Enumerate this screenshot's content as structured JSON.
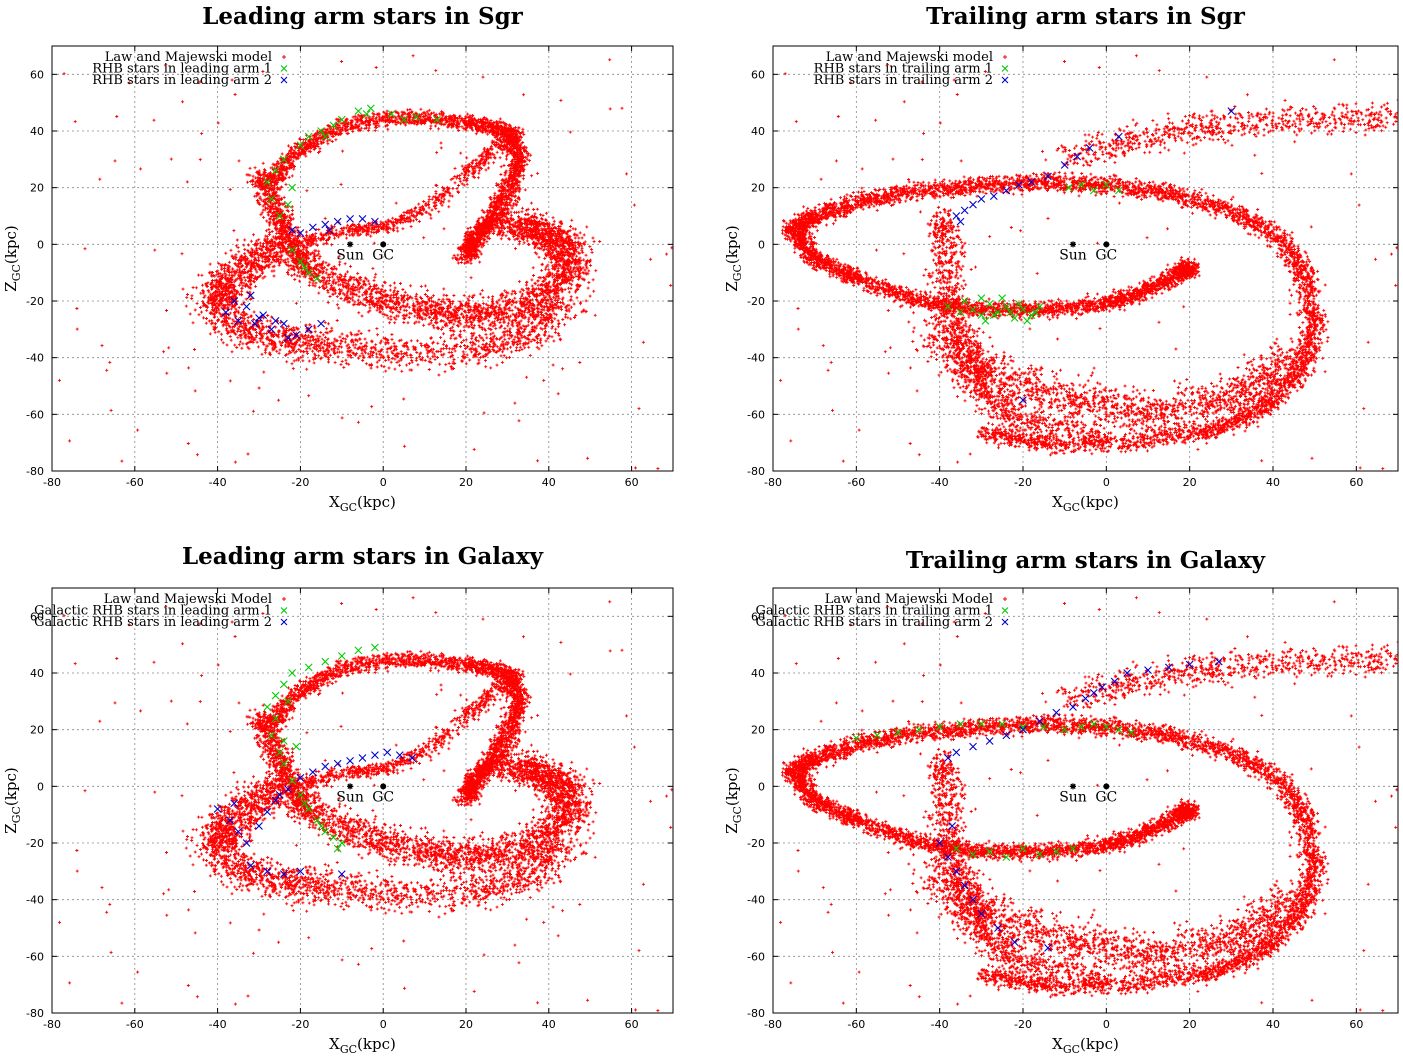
{
  "chart_data": [
    {
      "type": "scatter",
      "title": "Leading arm stars in Sgr",
      "xlabel": "X",
      "xlabel_sub": "GC",
      "xlabel_unit": "(kpc)",
      "ylabel": "Z",
      "ylabel_sub": "GC",
      "ylabel_unit": "(kpc)",
      "xlim": [
        -80,
        70
      ],
      "ylim": [
        -80,
        70
      ],
      "xticks": [
        -80,
        -60,
        -40,
        -20,
        0,
        20,
        40,
        60
      ],
      "yticks": [
        -80,
        -60,
        -40,
        -20,
        0,
        20,
        40,
        60
      ],
      "grid": true,
      "legend_position": "top-left",
      "model": "leading",
      "series": [
        {
          "name": "Law and Majewski model",
          "marker": "+",
          "color": "#ff0000"
        },
        {
          "name": "RHB stars in leading arm 1",
          "marker": "x",
          "color": "#00cc00",
          "points": [
            [
              -28,
              22
            ],
            [
              -24,
              30
            ],
            [
              -20,
              35
            ],
            [
              -15,
              40
            ],
            [
              -10,
              44
            ],
            [
              -6,
              47
            ],
            [
              -3,
              48
            ],
            [
              2,
              46
            ],
            [
              8,
              45
            ],
            [
              13,
              44
            ],
            [
              -27,
              16
            ],
            [
              -25,
              10
            ],
            [
              -22,
              20
            ],
            [
              -18,
              38
            ],
            [
              -12,
              42
            ],
            [
              -22,
              -2
            ],
            [
              -20,
              -6
            ],
            [
              -18,
              -10
            ],
            [
              -16,
              -12
            ],
            [
              -19,
              -8
            ],
            [
              -26,
              26
            ],
            [
              -14,
              38
            ],
            [
              -4,
              46
            ],
            [
              5,
              44
            ],
            [
              -23,
              14
            ]
          ]
        },
        {
          "name": "RHB stars in leading arm 2",
          "marker": "x",
          "color": "#0000cc",
          "points": [
            [
              -38,
              -24
            ],
            [
              -35,
              -27
            ],
            [
              -33,
              -22
            ],
            [
              -31,
              -28
            ],
            [
              -29,
              -25
            ],
            [
              -27,
              -30
            ],
            [
              -24,
              -28
            ],
            [
              -21,
              -32
            ],
            [
              -18,
              -30
            ],
            [
              -15,
              -28
            ],
            [
              -36,
              -20
            ],
            [
              -32,
              -18
            ],
            [
              -30,
              -26
            ],
            [
              -26,
              -27
            ],
            [
              -23,
              -33
            ],
            [
              -20,
              4
            ],
            [
              -17,
              6
            ],
            [
              -14,
              7
            ],
            [
              -11,
              8
            ],
            [
              -8,
              9
            ],
            [
              -5,
              9
            ],
            [
              -2,
              8
            ],
            [
              -22,
              5
            ],
            [
              -13,
              5
            ]
          ]
        }
      ],
      "annotations": [
        {
          "label": "Sun",
          "marker": "*",
          "x": -8,
          "y": 0
        },
        {
          "label": "GC",
          "marker": "dot",
          "x": 0,
          "y": 0
        }
      ]
    },
    {
      "type": "scatter",
      "title": "Trailing arm stars in Sgr",
      "xlabel": "X",
      "xlabel_sub": "GC",
      "xlabel_unit": "(kpc)",
      "ylabel": "Z",
      "ylabel_sub": "GC",
      "ylabel_unit": "(kpc)",
      "xlim": [
        -80,
        70
      ],
      "ylim": [
        -80,
        70
      ],
      "xticks": [
        -80,
        -60,
        -40,
        -20,
        0,
        20,
        40,
        60
      ],
      "yticks": [
        -80,
        -60,
        -40,
        -20,
        0,
        20,
        40,
        60
      ],
      "grid": true,
      "legend_position": "top-left",
      "model": "trailing",
      "series": [
        {
          "name": "Law and Majewski model",
          "marker": "+",
          "color": "#ff0000"
        },
        {
          "name": "RHB stars in trailing arm 1",
          "marker": "x",
          "color": "#00cc00",
          "points": [
            [
              -38,
              -22
            ],
            [
              -35,
              -24
            ],
            [
              -32,
              -23
            ],
            [
              -30,
              -25
            ],
            [
              -28,
              -21
            ],
            [
              -26,
              -24
            ],
            [
              -24,
              -22
            ],
            [
              -22,
              -26
            ],
            [
              -20,
              -23
            ],
            [
              -18,
              -25
            ],
            [
              -16,
              -22
            ],
            [
              -34,
              -20
            ],
            [
              -29,
              -27
            ],
            [
              -25,
              -19
            ],
            [
              -21,
              -21
            ],
            [
              -17,
              -24
            ],
            [
              -27,
              -25
            ],
            [
              -23,
              -24
            ],
            [
              -30,
              -19
            ],
            [
              -6,
              21
            ],
            [
              -3,
              19
            ],
            [
              0,
              21
            ],
            [
              -9,
              20
            ],
            [
              3,
              19
            ],
            [
              -19,
              -27
            ]
          ]
        },
        {
          "name": "RHB stars in trailing arm 2",
          "marker": "x",
          "color": "#0000cc",
          "points": [
            [
              -36,
              10
            ],
            [
              -34,
              12
            ],
            [
              -32,
              14
            ],
            [
              -30,
              16
            ],
            [
              -27,
              17
            ],
            [
              -24,
              19
            ],
            [
              -21,
              21
            ],
            [
              -18,
              22
            ],
            [
              -14,
              24
            ],
            [
              -10,
              28
            ],
            [
              -7,
              31
            ],
            [
              -4,
              34
            ],
            [
              3,
              38
            ],
            [
              30,
              47
            ],
            [
              -35,
              8
            ],
            [
              -20,
              -55
            ]
          ]
        }
      ],
      "annotations": [
        {
          "label": "Sun",
          "marker": "*",
          "x": -8,
          "y": 0
        },
        {
          "label": "GC",
          "marker": "dot",
          "x": 0,
          "y": 0
        }
      ]
    },
    {
      "type": "scatter",
      "title": "Leading arm stars in Galaxy",
      "xlabel": "X",
      "xlabel_sub": "GC",
      "xlabel_unit": "(kpc)",
      "ylabel": "Z",
      "ylabel_sub": "GC",
      "ylabel_unit": "(kpc)",
      "xlim": [
        -80,
        70
      ],
      "ylim": [
        -80,
        70
      ],
      "xticks": [
        -80,
        -60,
        -40,
        -20,
        0,
        20,
        40,
        60
      ],
      "yticks": [
        -80,
        -60,
        -40,
        -20,
        0,
        20,
        40,
        60
      ],
      "grid": true,
      "legend_position": "top-left",
      "model": "leading",
      "series": [
        {
          "name": "Law and Majewski Model",
          "marker": "+",
          "color": "#ff0000"
        },
        {
          "name": "Galactic RHB stars in leading arm 1",
          "marker": "x",
          "color": "#00cc00",
          "points": [
            [
              -28,
              28
            ],
            [
              -26,
              32
            ],
            [
              -24,
              36
            ],
            [
              -22,
              40
            ],
            [
              -18,
              42
            ],
            [
              -14,
              44
            ],
            [
              -10,
              46
            ],
            [
              -6,
              48
            ],
            [
              -2,
              49
            ],
            [
              -27,
              18
            ],
            [
              -25,
              12
            ],
            [
              -24,
              8
            ],
            [
              -22,
              2
            ],
            [
              -20,
              -3
            ],
            [
              -18,
              -8
            ],
            [
              -16,
              -12
            ],
            [
              -14,
              -16
            ],
            [
              -12,
              -18
            ],
            [
              -10,
              -20
            ],
            [
              -26,
              24
            ],
            [
              -23,
              30
            ],
            [
              -19,
              -6
            ],
            [
              -15,
              -14
            ],
            [
              -11,
              -22
            ],
            [
              -24,
              16
            ],
            [
              -21,
              14
            ]
          ]
        },
        {
          "name": "Galactic RHB stars in leading arm 2",
          "marker": "x",
          "color": "#0000cc",
          "points": [
            [
              -40,
              -8
            ],
            [
              -37,
              -12
            ],
            [
              -35,
              -16
            ],
            [
              -33,
              -20
            ],
            [
              -30,
              -14
            ],
            [
              -28,
              -9
            ],
            [
              -26,
              -5
            ],
            [
              -23,
              -1
            ],
            [
              -20,
              3
            ],
            [
              -17,
              5
            ],
            [
              -14,
              7
            ],
            [
              -11,
              8
            ],
            [
              -8,
              9
            ],
            [
              -5,
              10
            ],
            [
              -2,
              11
            ],
            [
              1,
              12
            ],
            [
              4,
              11
            ],
            [
              7,
              10
            ],
            [
              -32,
              -28
            ],
            [
              -28,
              -30
            ],
            [
              -24,
              -31
            ],
            [
              -20,
              -30
            ],
            [
              -10,
              -31
            ],
            [
              -36,
              -6
            ],
            [
              -25,
              -3
            ]
          ]
        }
      ],
      "annotations": [
        {
          "label": "Sun",
          "marker": "*",
          "x": -8,
          "y": 0
        },
        {
          "label": "GC",
          "marker": "dot",
          "x": 0,
          "y": 0
        }
      ]
    },
    {
      "type": "scatter",
      "title": "Trailing arm stars in Galaxy",
      "xlabel": "X",
      "xlabel_sub": "GC",
      "xlabel_unit": "(kpc)",
      "ylabel": "Z",
      "ylabel_sub": "GC",
      "ylabel_unit": "(kpc)",
      "xlim": [
        -80,
        70
      ],
      "ylim": [
        -80,
        70
      ],
      "xticks": [
        -80,
        -60,
        -40,
        -20,
        0,
        20,
        40,
        60
      ],
      "yticks": [
        -80,
        -60,
        -40,
        -20,
        0,
        20,
        40,
        60
      ],
      "grid": true,
      "legend_position": "top-left",
      "model": "trailing",
      "series": [
        {
          "name": "Law and Majewski Model",
          "marker": "+",
          "color": "#ff0000"
        },
        {
          "name": "Galactic RHB stars in trailing arm 1",
          "marker": "x",
          "color": "#00cc00",
          "points": [
            [
              -60,
              17
            ],
            [
              -55,
              18
            ],
            [
              -50,
              19
            ],
            [
              -45,
              20
            ],
            [
              -40,
              21
            ],
            [
              -35,
              22
            ],
            [
              -30,
              22
            ],
            [
              -25,
              22
            ],
            [
              -20,
              21
            ],
            [
              -15,
              21
            ],
            [
              -10,
              20
            ],
            [
              -6,
              21
            ],
            [
              -3,
              22
            ],
            [
              0,
              21
            ],
            [
              3,
              20
            ],
            [
              6,
              19
            ],
            [
              -36,
              -22
            ],
            [
              -32,
              -24
            ],
            [
              -28,
              -23
            ],
            [
              -24,
              -25
            ],
            [
              -20,
              -22
            ],
            [
              -16,
              -24
            ],
            [
              -12,
              -23
            ],
            [
              -8,
              -22
            ]
          ]
        },
        {
          "name": "Galactic RHB stars in trailing arm 2",
          "marker": "x",
          "color": "#0000cc",
          "points": [
            [
              -38,
              10
            ],
            [
              -36,
              12
            ],
            [
              -32,
              14
            ],
            [
              -28,
              16
            ],
            [
              -24,
              18
            ],
            [
              -20,
              20
            ],
            [
              -16,
              23
            ],
            [
              -12,
              26
            ],
            [
              -8,
              28
            ],
            [
              -5,
              31
            ],
            [
              -3,
              33
            ],
            [
              -1,
              35
            ],
            [
              2,
              37
            ],
            [
              5,
              40
            ],
            [
              10,
              41
            ],
            [
              15,
              42
            ],
            [
              20,
              43
            ],
            [
              27,
              44
            ],
            [
              -40,
              -20
            ],
            [
              -38,
              -25
            ],
            [
              -36,
              -30
            ],
            [
              -34,
              -35
            ],
            [
              -32,
              -40
            ],
            [
              -30,
              -45
            ],
            [
              -26,
              -50
            ],
            [
              -22,
              -55
            ],
            [
              -14,
              -57
            ],
            [
              -37,
              -14
            ]
          ]
        }
      ],
      "annotations": [
        {
          "label": "Sun",
          "marker": "*",
          "x": -8,
          "y": 0
        },
        {
          "label": "GC",
          "marker": "dot",
          "x": 0,
          "y": 0
        }
      ]
    }
  ]
}
